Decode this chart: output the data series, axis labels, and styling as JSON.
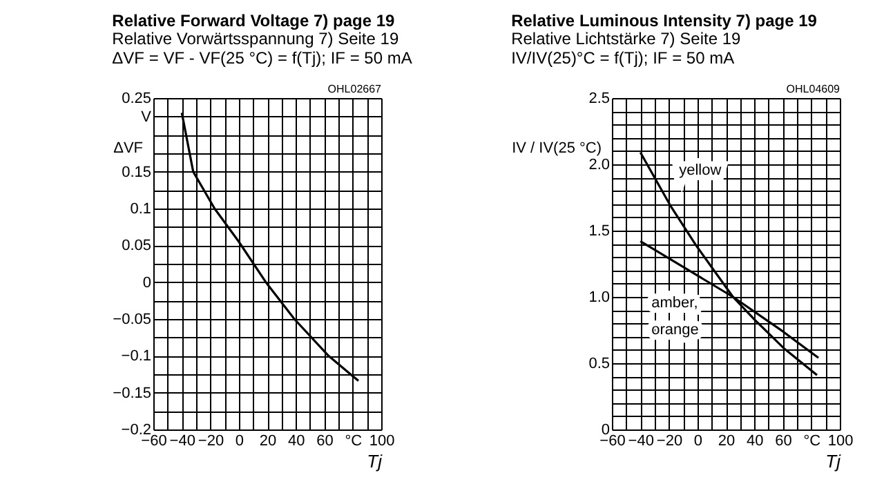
{
  "chart_data": [
    {
      "type": "line",
      "title": "Relative Forward Voltage 7) page 19",
      "subtitle": "Relative Vorwärtsspannung 7) Seite 19\nΔVF = VF - VF(25 °C) = f(Tj); IF = 50 mA",
      "xlabel": "Tj",
      "ylabel": "ΔVF",
      "annotations": [
        "OHL02667"
      ],
      "series": [
        {
          "color": "#000000",
          "x": [
            -40,
            -32,
            -17,
            0,
            19,
            39,
            63,
            84
          ],
          "values": [
            0.23,
            0.15,
            0.1,
            0.055,
            0,
            -0.05,
            -0.1,
            -0.134
          ]
        }
      ],
      "xlim": [
        -60,
        100
      ],
      "xticks": [
        -60,
        {
          "value": -50,
          "label": null
        },
        -40,
        {
          "value": -30,
          "label": null
        },
        -20,
        {
          "value": -10,
          "label": null
        },
        0,
        {
          "value": 10,
          "label": null
        },
        20,
        {
          "value": 30,
          "label": null
        },
        40,
        {
          "value": 50,
          "label": null
        },
        60,
        {
          "value": 70,
          "label": null
        },
        {
          "value": 80,
          "label": "°C"
        },
        {
          "value": 90,
          "label": null
        },
        100
      ],
      "ylim": [
        -0.2,
        0.25
      ],
      "yticks": [
        -0.2,
        {
          "value": -0.175,
          "label": null
        },
        -0.15,
        {
          "value": -0.125,
          "label": null
        },
        -0.1,
        {
          "value": -0.075,
          "label": null
        },
        -0.05,
        {
          "value": -0.025,
          "label": null
        },
        0,
        {
          "value": 0.025,
          "label": null
        },
        0.05,
        {
          "value": 0.075,
          "label": null
        },
        0.1,
        {
          "value": 0.125,
          "label": null
        },
        0.15,
        {
          "value": 0.175,
          "label": null
        },
        {
          "value": 0.2,
          "label": null
        },
        {
          "value": 0.225,
          "label": "V"
        },
        0.25
      ],
      "grid": true,
      "marker": "none",
      "line_style": "solid"
    },
    {
      "type": "line",
      "title": "Relative Luminous Intensity 7) page 19",
      "subtitle": "Relative Lichtstärke 7) Seite 19\nIV/IV(25)°C = f(Tj); IF = 50 mA",
      "xlabel": "Tj",
      "ylabel": "IV / IV(25 °C)",
      "annotations": [
        "OHL04609"
      ],
      "series": [
        {
          "name": "yellow",
          "color": "#000000",
          "x": [
            -40,
            -19,
            -1,
            25,
            40,
            61,
            84
          ],
          "values": [
            2.09,
            1.69,
            1.39,
            1.0,
            0.83,
            0.61,
            0.41
          ]
        },
        {
          "name": "amber, orange",
          "color": "#000000",
          "x": [
            -40,
            25,
            60,
            85
          ],
          "values": [
            1.42,
            1.0,
            0.74,
            0.54
          ]
        }
      ],
      "xlim": [
        -60,
        100
      ],
      "xticks": [
        -60,
        {
          "value": -50,
          "label": null
        },
        -40,
        {
          "value": -30,
          "label": null
        },
        -20,
        {
          "value": -10,
          "label": null
        },
        0,
        {
          "value": 10,
          "label": null
        },
        20,
        {
          "value": 30,
          "label": null
        },
        40,
        {
          "value": 50,
          "label": null
        },
        60,
        {
          "value": 70,
          "label": null
        },
        {
          "value": 80,
          "label": "°C"
        },
        {
          "value": 90,
          "label": null
        },
        100
      ],
      "ylim": [
        0,
        2.5
      ],
      "yticks": [
        0,
        {
          "value": 0.1,
          "label": null
        },
        {
          "value": 0.2,
          "label": null
        },
        {
          "value": 0.3,
          "label": null
        },
        {
          "value": 0.4,
          "label": null
        },
        0.5,
        {
          "value": 0.6,
          "label": null
        },
        {
          "value": 0.7,
          "label": null
        },
        {
          "value": 0.8,
          "label": null
        },
        {
          "value": 0.9,
          "label": null
        },
        {
          "value": 1,
          "label": "1.0"
        },
        {
          "value": 1.1,
          "label": null
        },
        {
          "value": 1.2,
          "label": null
        },
        {
          "value": 1.3,
          "label": null
        },
        {
          "value": 1.4,
          "label": null
        },
        1.5,
        {
          "value": 1.6,
          "label": null
        },
        {
          "value": 1.7,
          "label": null
        },
        {
          "value": 1.8,
          "label": null
        },
        {
          "value": 1.9,
          "label": null
        },
        {
          "value": 2,
          "label": "2.0"
        },
        {
          "value": 2.1,
          "label": null
        },
        {
          "value": 2.2,
          "label": null
        },
        {
          "value": 2.3,
          "label": null
        },
        {
          "value": 2.4,
          "label": null
        },
        2.5
      ],
      "grid": true,
      "marker": "none",
      "line_style": "solid"
    }
  ]
}
